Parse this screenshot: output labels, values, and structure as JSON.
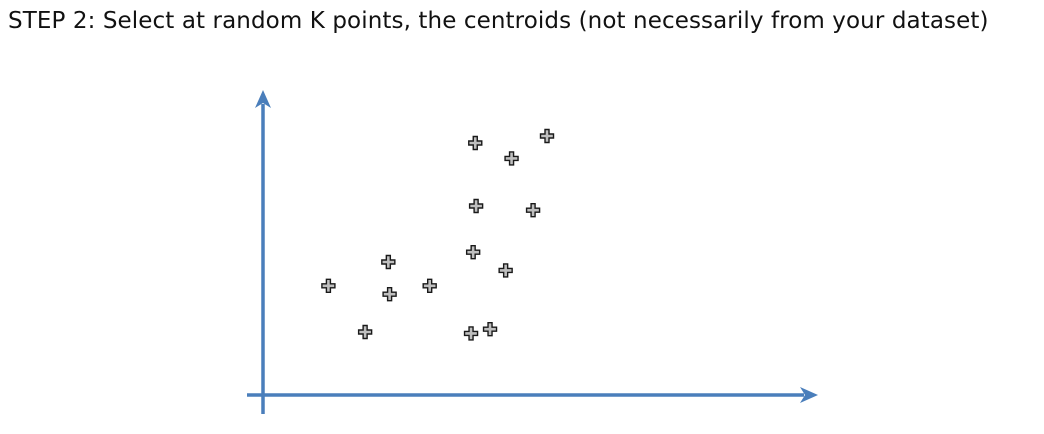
{
  "slide": {
    "title": "STEP 2: Select at random K points, the centroids (not necessarily from your dataset)"
  },
  "colors": {
    "axis": "#4a7ebb",
    "marker_fill": "#bfbfbf",
    "marker_stroke": "#1a1a1a",
    "title_text": "#111111",
    "background": "#ffffff"
  },
  "chart_data": {
    "type": "scatter",
    "title": "",
    "xlabel": "",
    "ylabel": "",
    "xlim": [
      0,
      10
    ],
    "ylim": [
      0,
      10
    ],
    "grid": false,
    "legend": "none",
    "marker": "plus-icon",
    "series": [
      {
        "x": [
          1.55,
          2.42,
          2.97,
          3.0,
          3.95,
          4.93,
          4.98,
          5.05,
          5.03,
          5.38,
          5.75,
          5.89,
          6.4,
          6.73
        ],
        "y": [
          3.9,
          2.25,
          4.75,
          3.6,
          3.9,
          2.2,
          5.1,
          6.75,
          9.0,
          2.35,
          4.45,
          8.45,
          6.6,
          9.25
        ]
      }
    ]
  }
}
